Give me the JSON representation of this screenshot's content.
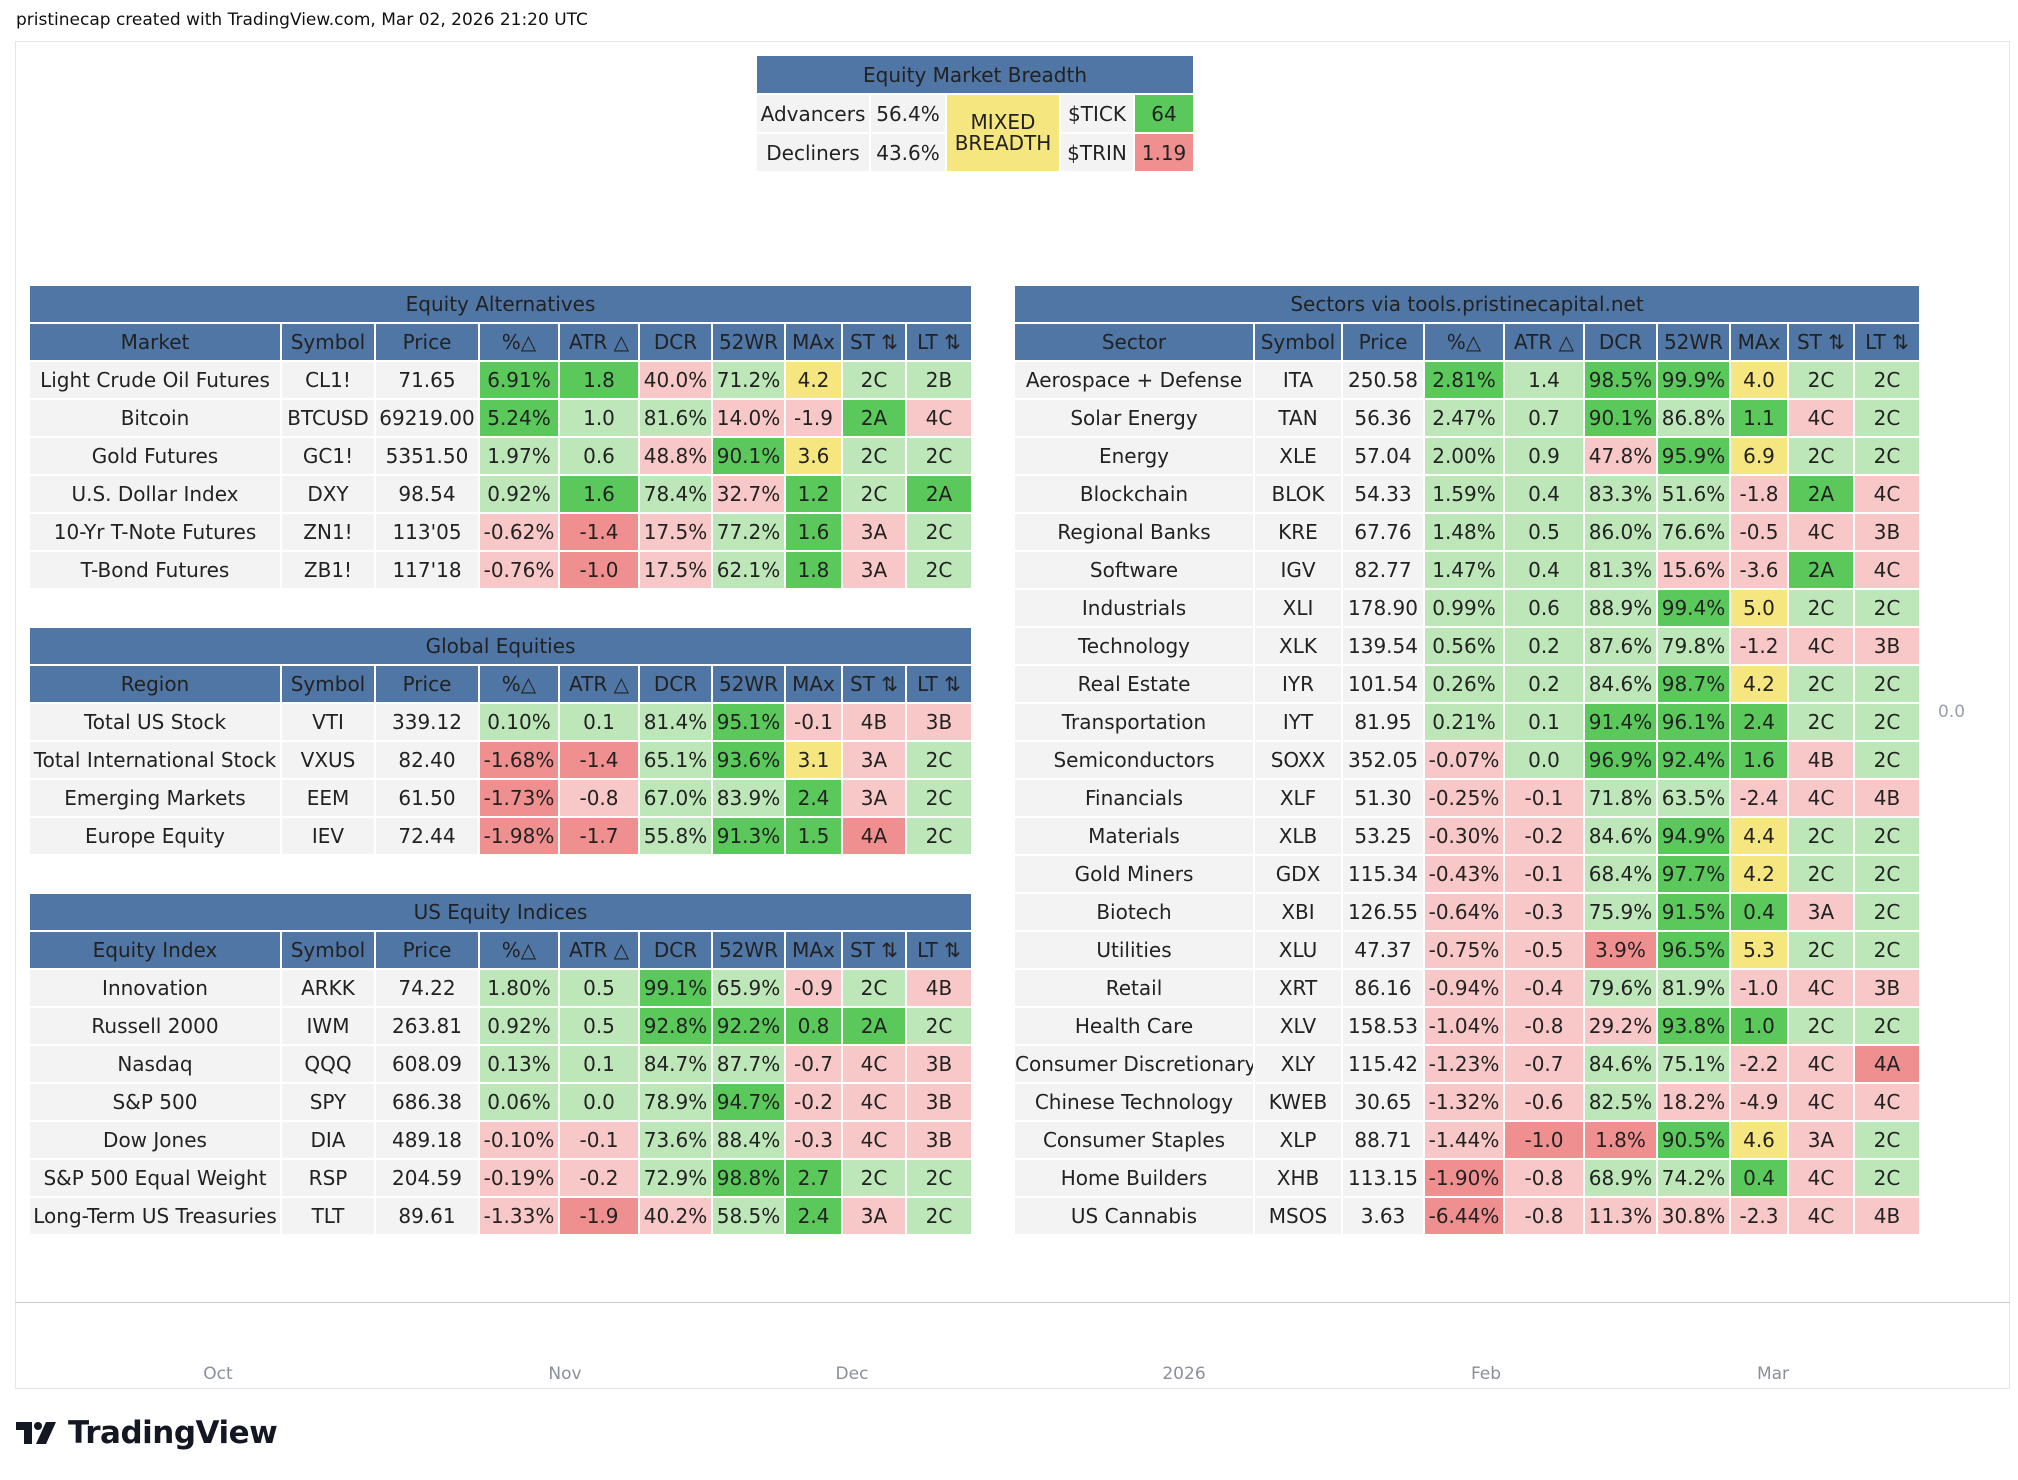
{
  "caption": "pristinecap created with TradingView.com, Mar 02, 2026 21:20 UTC",
  "logo_text": "TradingView",
  "price_scale_label": "0.0",
  "time_axis": [
    "Oct",
    "Nov",
    "Dec",
    "2026",
    "Feb",
    "Mar"
  ],
  "colors": {
    "header_blue": "#4f76a4",
    "green_strong": "#5bc85b",
    "green_light": "#bde7b9",
    "red_strong": "#f08f8f",
    "red_light": "#f8c8c8",
    "yellow": "#f5e67f",
    "neutral": "#f3f3f3"
  },
  "breadth": {
    "title": "Equity Market Breadth",
    "advancers_label": "Advancers",
    "advancers_value": "56.4%",
    "decliners_label": "Decliners",
    "decliners_value": "43.6%",
    "status": "MIXED BREADTH",
    "tick_label": "$TICK",
    "tick_value": "64",
    "trin_label": "$TRIN",
    "trin_value": "1.19"
  },
  "left_tables": [
    {
      "title": "Equity Alternatives",
      "headers": [
        "Market",
        "Symbol",
        "Price",
        "%△",
        "ATR △",
        "DCR",
        "52WR",
        "MAx",
        "ST ⇅",
        "LT ⇅"
      ],
      "rows": [
        [
          "Light Crude Oil Futures",
          "CL1!",
          "71.65",
          "6.91%",
          "1.8",
          "40.0%",
          "71.2%",
          "4.2",
          "2C",
          "2B"
        ],
        [
          "Bitcoin",
          "BTCUSD",
          "69219.00",
          "5.24%",
          "1.0",
          "81.6%",
          "14.0%",
          "-1.9",
          "2A",
          "4C"
        ],
        [
          "Gold Futures",
          "GC1!",
          "5351.50",
          "1.97%",
          "0.6",
          "48.8%",
          "90.1%",
          "3.6",
          "2C",
          "2C"
        ],
        [
          "U.S. Dollar Index",
          "DXY",
          "98.54",
          "0.92%",
          "1.6",
          "78.4%",
          "32.7%",
          "1.2",
          "2C",
          "2A"
        ],
        [
          "10-Yr T-Note Futures",
          "ZN1!",
          "113'05",
          "-0.62%",
          "-1.4",
          "17.5%",
          "77.2%",
          "1.6",
          "3A",
          "2C"
        ],
        [
          "T-Bond Futures",
          "ZB1!",
          "117'18",
          "-0.76%",
          "-1.0",
          "17.5%",
          "62.1%",
          "1.8",
          "3A",
          "2C"
        ]
      ]
    },
    {
      "title": "Global Equities",
      "headers": [
        "Region",
        "Symbol",
        "Price",
        "%△",
        "ATR △",
        "DCR",
        "52WR",
        "MAx",
        "ST ⇅",
        "LT ⇅"
      ],
      "rows": [
        [
          "Total US Stock",
          "VTI",
          "339.12",
          "0.10%",
          "0.1",
          "81.4%",
          "95.1%",
          "-0.1",
          "4B",
          "3B"
        ],
        [
          "Total International Stock",
          "VXUS",
          "82.40",
          "-1.68%",
          "-1.4",
          "65.1%",
          "93.6%",
          "3.1",
          "3A",
          "2C"
        ],
        [
          "Emerging Markets",
          "EEM",
          "61.50",
          "-1.73%",
          "-0.8",
          "67.0%",
          "83.9%",
          "2.4",
          "3A",
          "2C"
        ],
        [
          "Europe Equity",
          "IEV",
          "72.44",
          "-1.98%",
          "-1.7",
          "55.8%",
          "91.3%",
          "1.5",
          "4A",
          "2C"
        ]
      ]
    },
    {
      "title": "US Equity Indices",
      "headers": [
        "Equity Index",
        "Symbol",
        "Price",
        "%△",
        "ATR △",
        "DCR",
        "52WR",
        "MAx",
        "ST ⇅",
        "LT ⇅"
      ],
      "rows": [
        [
          "Innovation",
          "ARKK",
          "74.22",
          "1.80%",
          "0.5",
          "99.1%",
          "65.9%",
          "-0.9",
          "2C",
          "4B"
        ],
        [
          "Russell 2000",
          "IWM",
          "263.81",
          "0.92%",
          "0.5",
          "92.8%",
          "92.2%",
          "0.8",
          "2A",
          "2C"
        ],
        [
          "Nasdaq",
          "QQQ",
          "608.09",
          "0.13%",
          "0.1",
          "84.7%",
          "87.7%",
          "-0.7",
          "4C",
          "3B"
        ],
        [
          "S&P 500",
          "SPY",
          "686.38",
          "0.06%",
          "0.0",
          "78.9%",
          "94.7%",
          "-0.2",
          "4C",
          "3B"
        ],
        [
          "Dow Jones",
          "DIA",
          "489.18",
          "-0.10%",
          "-0.1",
          "73.6%",
          "88.4%",
          "-0.3",
          "4C",
          "3B"
        ],
        [
          "S&P 500 Equal Weight",
          "RSP",
          "204.59",
          "-0.19%",
          "-0.2",
          "72.9%",
          "98.8%",
          "2.7",
          "2C",
          "2C"
        ],
        [
          "Long-Term US Treasuries",
          "TLT",
          "89.61",
          "-1.33%",
          "-1.9",
          "40.2%",
          "58.5%",
          "2.4",
          "3A",
          "2C"
        ]
      ]
    }
  ],
  "sectors": {
    "title": "Sectors via tools.pristinecapital.net",
    "headers": [
      "Sector",
      "Symbol",
      "Price",
      "%△",
      "ATR △",
      "DCR",
      "52WR",
      "MAx",
      "ST ⇅",
      "LT ⇅"
    ],
    "rows": [
      [
        "Aerospace + Defense",
        "ITA",
        "250.58",
        "2.81%",
        "1.4",
        "98.5%",
        "99.9%",
        "4.0",
        "2C",
        "2C"
      ],
      [
        "Solar Energy",
        "TAN",
        "56.36",
        "2.47%",
        "0.7",
        "90.1%",
        "86.8%",
        "1.1",
        "4C",
        "2C"
      ],
      [
        "Energy",
        "XLE",
        "57.04",
        "2.00%",
        "0.9",
        "47.8%",
        "95.9%",
        "6.9",
        "2C",
        "2C"
      ],
      [
        "Blockchain",
        "BLOK",
        "54.33",
        "1.59%",
        "0.4",
        "83.3%",
        "51.6%",
        "-1.8",
        "2A",
        "4C"
      ],
      [
        "Regional Banks",
        "KRE",
        "67.76",
        "1.48%",
        "0.5",
        "86.0%",
        "76.6%",
        "-0.5",
        "4C",
        "3B"
      ],
      [
        "Software",
        "IGV",
        "82.77",
        "1.47%",
        "0.4",
        "81.3%",
        "15.6%",
        "-3.6",
        "2A",
        "4C"
      ],
      [
        "Industrials",
        "XLI",
        "178.90",
        "0.99%",
        "0.6",
        "88.9%",
        "99.4%",
        "5.0",
        "2C",
        "2C"
      ],
      [
        "Technology",
        "XLK",
        "139.54",
        "0.56%",
        "0.2",
        "87.6%",
        "79.8%",
        "-1.2",
        "4C",
        "3B"
      ],
      [
        "Real Estate",
        "IYR",
        "101.54",
        "0.26%",
        "0.2",
        "84.6%",
        "98.7%",
        "4.2",
        "2C",
        "2C"
      ],
      [
        "Transportation",
        "IYT",
        "81.95",
        "0.21%",
        "0.1",
        "91.4%",
        "96.1%",
        "2.4",
        "2C",
        "2C"
      ],
      [
        "Semiconductors",
        "SOXX",
        "352.05",
        "-0.07%",
        "0.0",
        "96.9%",
        "92.4%",
        "1.6",
        "4B",
        "2C"
      ],
      [
        "Financials",
        "XLF",
        "51.30",
        "-0.25%",
        "-0.1",
        "71.8%",
        "63.5%",
        "-2.4",
        "4C",
        "4B"
      ],
      [
        "Materials",
        "XLB",
        "53.25",
        "-0.30%",
        "-0.2",
        "84.6%",
        "94.9%",
        "4.4",
        "2C",
        "2C"
      ],
      [
        "Gold Miners",
        "GDX",
        "115.34",
        "-0.43%",
        "-0.1",
        "68.4%",
        "97.7%",
        "4.2",
        "2C",
        "2C"
      ],
      [
        "Biotech",
        "XBI",
        "126.55",
        "-0.64%",
        "-0.3",
        "75.9%",
        "91.5%",
        "0.4",
        "3A",
        "2C"
      ],
      [
        "Utilities",
        "XLU",
        "47.37",
        "-0.75%",
        "-0.5",
        "3.9%",
        "96.5%",
        "5.3",
        "2C",
        "2C"
      ],
      [
        "Retail",
        "XRT",
        "86.16",
        "-0.94%",
        "-0.4",
        "79.6%",
        "81.9%",
        "-1.0",
        "4C",
        "3B"
      ],
      [
        "Health Care",
        "XLV",
        "158.53",
        "-1.04%",
        "-0.8",
        "29.2%",
        "93.8%",
        "1.0",
        "2C",
        "2C"
      ],
      [
        "Consumer Discretionary",
        "XLY",
        "115.42",
        "-1.23%",
        "-0.7",
        "84.6%",
        "75.1%",
        "-2.2",
        "4C",
        "4A"
      ],
      [
        "Chinese Technology",
        "KWEB",
        "30.65",
        "-1.32%",
        "-0.6",
        "82.5%",
        "18.2%",
        "-4.9",
        "4C",
        "4C"
      ],
      [
        "Consumer Staples",
        "XLP",
        "88.71",
        "-1.44%",
        "-1.0",
        "1.8%",
        "90.5%",
        "4.6",
        "3A",
        "2C"
      ],
      [
        "Home Builders",
        "XHB",
        "113.15",
        "-1.90%",
        "-0.8",
        "68.9%",
        "74.2%",
        "0.4",
        "4C",
        "2C"
      ],
      [
        "US Cannabis",
        "MSOS",
        "3.63",
        "-6.44%",
        "-0.8",
        "11.3%",
        "30.8%",
        "-2.3",
        "4C",
        "4B"
      ]
    ]
  }
}
